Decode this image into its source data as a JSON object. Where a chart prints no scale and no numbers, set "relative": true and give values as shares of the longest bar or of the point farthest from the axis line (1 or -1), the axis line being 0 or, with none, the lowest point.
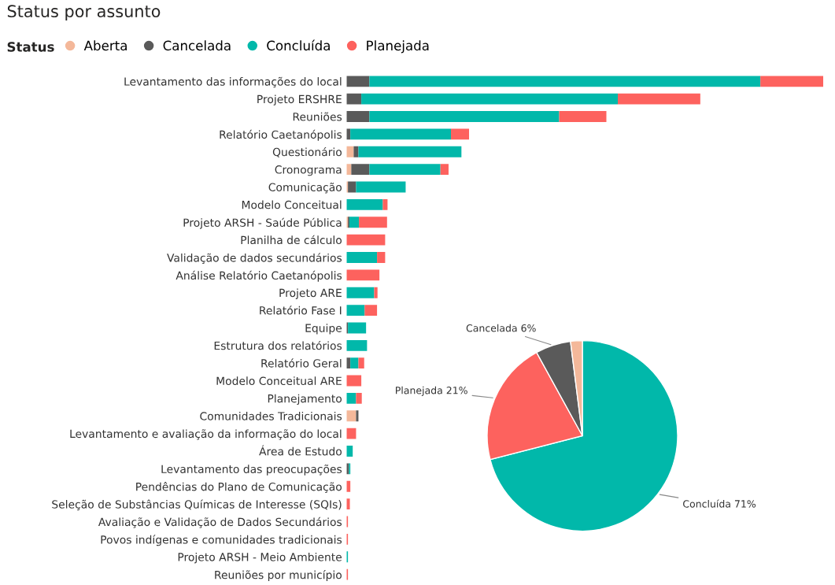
{
  "chart_data": [
    {
      "type": "bar",
      "title": "Status por assunto",
      "orientation": "horizontal",
      "stacked": true,
      "relative": true,
      "legend": "top left",
      "legend_title": "Status",
      "grid": false,
      "categories": [
        "Levantamento das informações do local",
        "Projeto ERSHRE",
        "Reuniões",
        "Relatório Caetanópolis",
        "Questionário",
        "Cronograma",
        "Comunicação",
        "Modelo Conceitual",
        "Projeto ARSH - Saúde Pública",
        "Planilha de cálculo",
        "Validação de dados secundários",
        "Análise Relatório Caetanópolis",
        "Projeto ARE",
        "Relatório Fase I",
        "Equipe",
        "Estrutura dos relatórios",
        "Relatório Geral",
        "Modelo Conceitual ARE",
        "Planejamento",
        "Comunidades Tradicionais",
        "Levantamento e avaliação da informação do local",
        "Área de Estudo",
        "Levantamento das preocupações",
        "Pendências do Plano de Comunicação",
        "Seleção de Substâncias Químicas de Interesse (SQIs)",
        "Avaliação e Validação de Dados Secundários",
        "Povos indígenas e comunidades tradicionais",
        "Projeto ARSH - Meio Ambiente",
        "Reuniões por município"
      ],
      "series": [
        {
          "name": "Aberta",
          "color": "#f4b89a",
          "values": [
            0,
            0,
            0,
            0,
            0.015,
            0.01,
            0.003,
            0,
            0.003,
            0,
            0,
            0,
            0,
            0,
            0,
            0,
            0,
            0,
            0,
            0.02,
            0,
            0,
            0,
            0,
            0,
            0,
            0,
            0,
            0
          ]
        },
        {
          "name": "Cancelada",
          "color": "#5a5a5a",
          "values": [
            0.048,
            0.031,
            0.048,
            0.008,
            0.01,
            0.038,
            0.017,
            0,
            0.003,
            0,
            0,
            0,
            0,
            0,
            0.003,
            0,
            0.008,
            0,
            0,
            0.005,
            0,
            0,
            0.005,
            0,
            0,
            0,
            0,
            0,
            0
          ]
        },
        {
          "name": "Concluída",
          "color": "#01b8aa",
          "values": [
            0.82,
            0.538,
            0.398,
            0.211,
            0.216,
            0.149,
            0.104,
            0.076,
            0.02,
            0,
            0.064,
            0,
            0.058,
            0.038,
            0.038,
            0.043,
            0.017,
            0,
            0.02,
            0,
            0,
            0.013,
            0.003,
            0,
            0,
            0,
            0,
            0.003,
            0
          ]
        },
        {
          "name": "Planejada",
          "color": "#fd625e",
          "values": [
            0.132,
            0.173,
            0.099,
            0.038,
            0,
            0.017,
            0,
            0.01,
            0.059,
            0.081,
            0.017,
            0.069,
            0.007,
            0.026,
            0,
            0,
            0.012,
            0.031,
            0.012,
            0,
            0.02,
            0,
            0,
            0.008,
            0.007,
            0.003,
            0.003,
            0,
            0.003
          ]
        }
      ]
    },
    {
      "type": "pie",
      "categories": [
        "Concluída",
        "Planejada",
        "Cancelada",
        null
      ],
      "values": [
        71,
        21,
        6,
        2
      ],
      "colors": [
        "#01b8aa",
        "#fd625e",
        "#5a5a5a",
        "#f4b89a"
      ],
      "value_labels": [
        "71%",
        "21%",
        "6%",
        null
      ]
    }
  ]
}
